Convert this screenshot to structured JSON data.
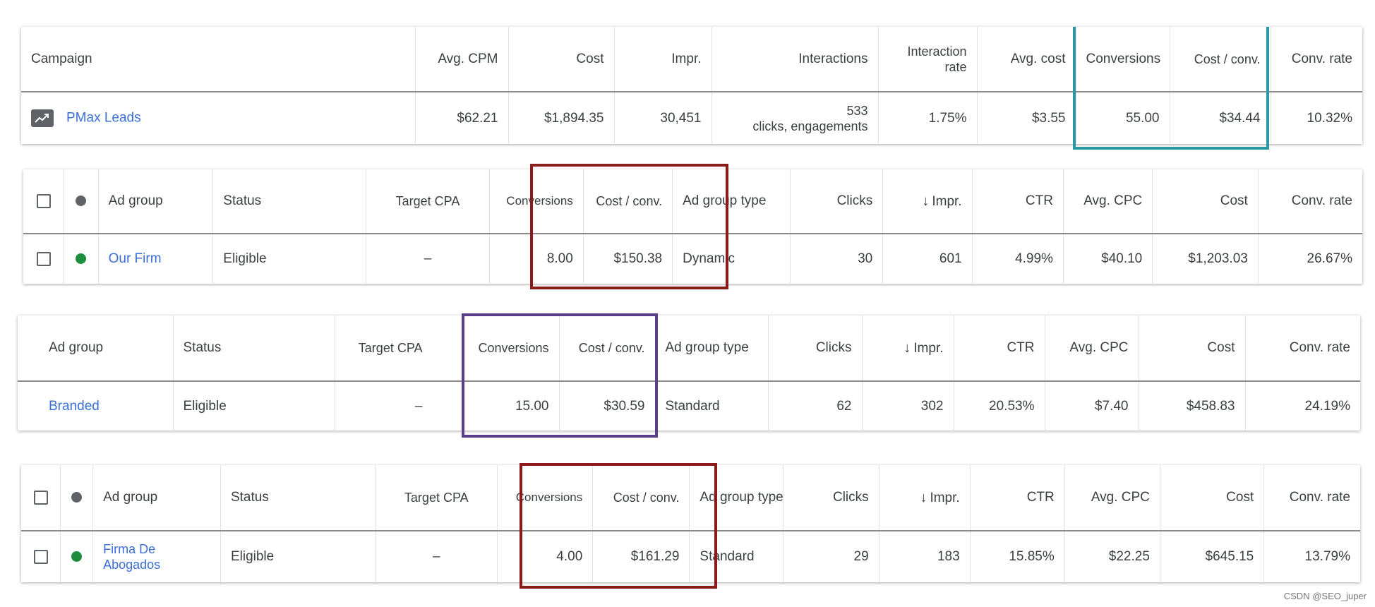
{
  "colors": {
    "teal": "#2a9aa0",
    "darkred": "#8b1a1a",
    "purple": "#5a3f8a",
    "link": "#3a6fd8",
    "green": "#1e8e3e"
  },
  "campaign_table": {
    "headers": {
      "campaign": "Campaign",
      "avg_cpm": "Avg. CPM",
      "cost": "Cost",
      "impr": "Impr.",
      "interactions": "Interactions",
      "interaction_rate": "Interaction rate",
      "avg_cost": "Avg. cost",
      "conversions": "Conversions",
      "cost_conv": "Cost / conv.",
      "conv_rate": "Conv. rate"
    },
    "row": {
      "icon": "trending-chart-icon",
      "campaign": "PMax Leads",
      "avg_cpm": "$62.21",
      "cost": "$1,894.35",
      "impr": "30,451",
      "interactions": "533",
      "interactions_sub": "clicks, engagements",
      "interaction_rate": "1.75%",
      "avg_cost": "$3.55",
      "conversions": "55.00",
      "cost_conv": "$34.44",
      "conv_rate": "10.32%"
    }
  },
  "adgroup_table_1": {
    "headers": {
      "ad_group": "Ad group",
      "status": "Status",
      "target_cpa": "Target CPA",
      "conversions": "Conversions",
      "cost_conv": "Cost / conv.",
      "ad_group_type": "Ad group type",
      "clicks": "Clicks",
      "impr": "Impr.",
      "ctr": "CTR",
      "avg_cpc": "Avg. CPC",
      "cost": "Cost",
      "conv_rate": "Conv. rate"
    },
    "row": {
      "ad_group": "Our Firm",
      "status": "Eligible",
      "target_cpa": "–",
      "conversions": "8.00",
      "cost_conv": "$150.38",
      "ad_group_type": "Dynamic",
      "clicks": "30",
      "impr": "601",
      "ctr": "4.99%",
      "avg_cpc": "$40.10",
      "cost": "$1,203.03",
      "conv_rate": "26.67%"
    }
  },
  "adgroup_table_2": {
    "headers": {
      "ad_group": "Ad group",
      "status": "Status",
      "target_cpa": "Target CPA",
      "conversions": "Conversions",
      "cost_conv": "Cost / conv.",
      "ad_group_type": "Ad group type",
      "clicks": "Clicks",
      "impr": "Impr.",
      "ctr": "CTR",
      "avg_cpc": "Avg. CPC",
      "cost": "Cost",
      "conv_rate": "Conv. rate"
    },
    "row": {
      "ad_group": "Branded",
      "status": "Eligible",
      "target_cpa": "–",
      "conversions": "15.00",
      "cost_conv": "$30.59",
      "ad_group_type": "Standard",
      "clicks": "62",
      "impr": "302",
      "ctr": "20.53%",
      "avg_cpc": "$7.40",
      "cost": "$458.83",
      "conv_rate": "24.19%"
    }
  },
  "adgroup_table_3": {
    "headers": {
      "ad_group": "Ad group",
      "status": "Status",
      "target_cpa": "Target CPA",
      "conversions": "Conversions",
      "cost_conv": "Cost / conv.",
      "ad_group_type": "Ad group type",
      "clicks": "Clicks",
      "impr": "Impr.",
      "ctr": "CTR",
      "avg_cpc": "Avg. CPC",
      "cost": "Cost",
      "conv_rate": "Conv. rate"
    },
    "row": {
      "ad_group": "Firma De Abogados",
      "status": "Eligible",
      "target_cpa": "–",
      "conversions": "4.00",
      "cost_conv": "$161.29",
      "ad_group_type": "Standard",
      "clicks": "29",
      "impr": "183",
      "ctr": "15.85%",
      "avg_cpc": "$22.25",
      "cost": "$645.15",
      "conv_rate": "13.79%"
    }
  },
  "watermark": "CSDN @SEO_juper"
}
